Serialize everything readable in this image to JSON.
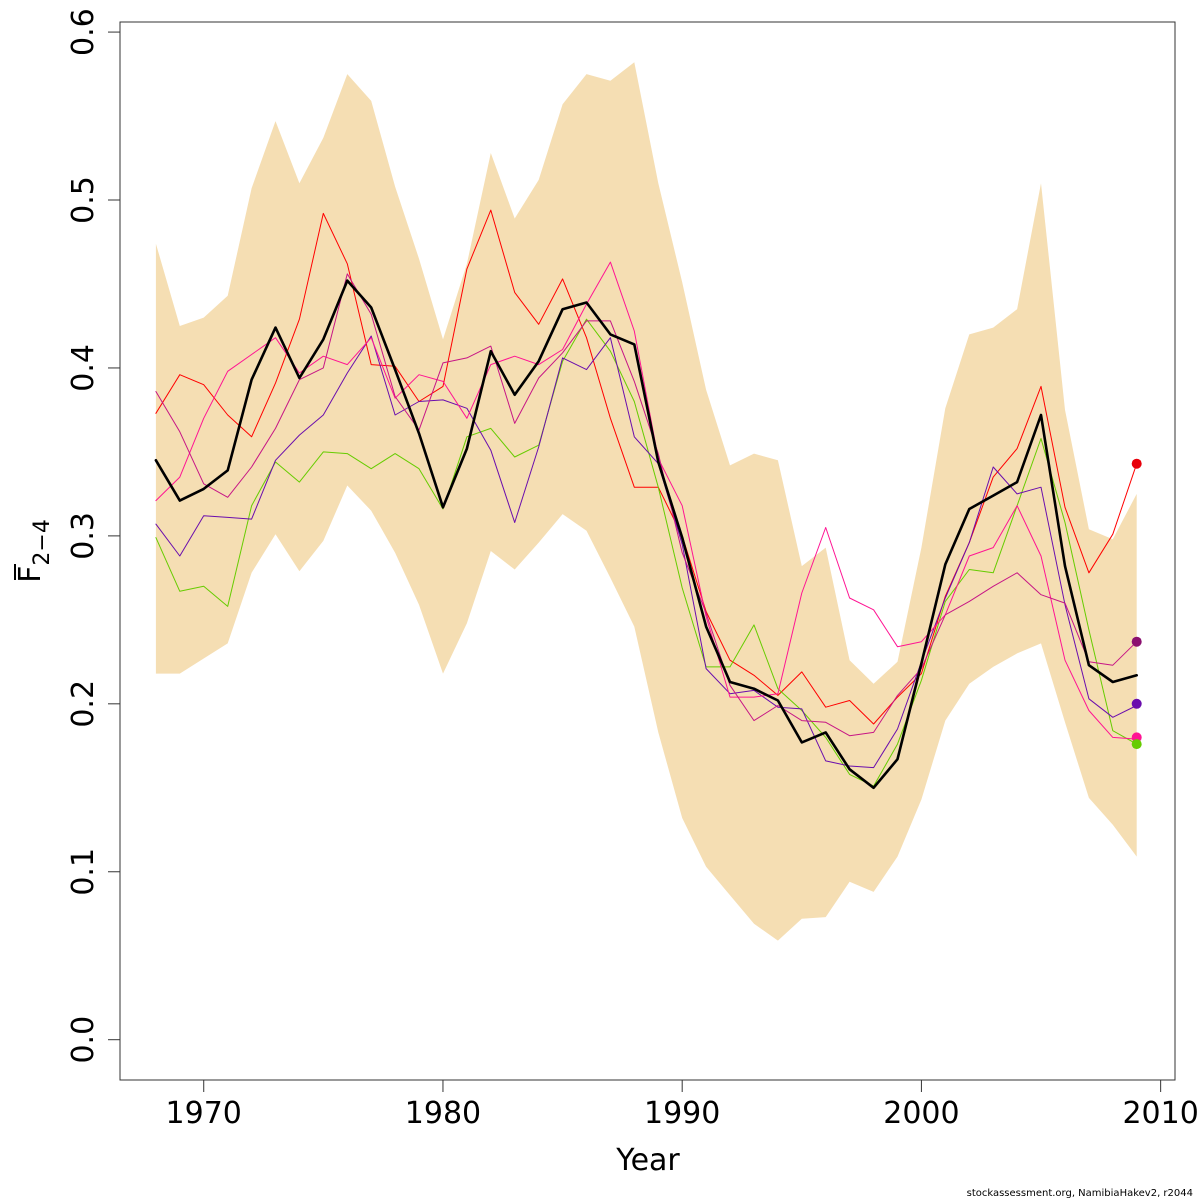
{
  "chart_data": {
    "type": "line",
    "xlabel": "Year",
    "ylabel_main": "F",
    "ylabel_sub": "2−4",
    "xlim": [
      1966.5,
      2010.6
    ],
    "ylim": [
      -0.024,
      0.606
    ],
    "x_ticks": [
      1970,
      1980,
      1990,
      2000,
      2010
    ],
    "y_ticks": [
      0.0,
      0.1,
      0.2,
      0.3,
      0.4,
      0.5,
      0.6
    ],
    "y_tick_labels": [
      "0.0",
      "0.1",
      "0.2",
      "0.3",
      "0.4",
      "0.5",
      "0.6"
    ],
    "credit": "stockassessment.org, NamibiaHakev2, r2044",
    "x": [
      1968,
      1969,
      1970,
      1971,
      1972,
      1973,
      1974,
      1975,
      1976,
      1977,
      1978,
      1979,
      1980,
      1981,
      1982,
      1983,
      1984,
      1985,
      1986,
      1987,
      1988,
      1989,
      1990,
      1991,
      1992,
      1993,
      1994,
      1995,
      1996,
      1997,
      1998,
      1999,
      2000,
      2001,
      2002,
      2003,
      2004,
      2005,
      2006,
      2007,
      2008,
      2009
    ],
    "ci_band": {
      "color": "#F5DEB3",
      "upper": [
        0.474,
        0.425,
        0.43,
        0.443,
        0.507,
        0.547,
        0.51,
        0.537,
        0.575,
        0.559,
        0.508,
        0.465,
        0.417,
        0.462,
        0.528,
        0.489,
        0.512,
        0.557,
        0.575,
        0.571,
        0.582,
        0.51,
        0.451,
        0.387,
        0.342,
        0.349,
        0.345,
        0.282,
        0.293,
        0.226,
        0.212,
        0.225,
        0.293,
        0.376,
        0.42,
        0.424,
        0.435,
        0.51,
        0.375,
        0.304,
        0.298,
        0.325
      ],
      "lower": [
        0.218,
        0.218,
        0.227,
        0.236,
        0.278,
        0.301,
        0.279,
        0.297,
        0.33,
        0.315,
        0.29,
        0.259,
        0.218,
        0.248,
        0.291,
        0.28,
        0.296,
        0.313,
        0.303,
        0.275,
        0.246,
        0.183,
        0.132,
        0.103,
        0.086,
        0.069,
        0.059,
        0.072,
        0.073,
        0.094,
        0.088,
        0.109,
        0.143,
        0.19,
        0.212,
        0.222,
        0.23,
        0.236,
        0.189,
        0.144,
        0.128,
        0.109
      ]
    },
    "series": [
      {
        "color": "#000000",
        "width": 2.6,
        "values": [
          0.345,
          0.321,
          0.328,
          0.339,
          0.393,
          0.424,
          0.394,
          0.417,
          0.452,
          0.436,
          0.399,
          0.361,
          0.317,
          0.352,
          0.41,
          0.384,
          0.404,
          0.435,
          0.439,
          0.42,
          0.414,
          0.344,
          0.299,
          0.246,
          0.213,
          0.209,
          0.202,
          0.177,
          0.183,
          0.161,
          0.15,
          0.167,
          0.224,
          0.283,
          0.316,
          0.324,
          0.332,
          0.372,
          0.282,
          0.223,
          0.213,
          0.217
        ]
      },
      {
        "color": "#FF0000",
        "width": 1,
        "values": [
          0.373,
          0.396,
          0.39,
          0.372,
          0.359,
          0.391,
          0.429,
          0.492,
          0.462,
          0.402,
          0.401,
          0.38,
          0.389,
          0.459,
          0.494,
          0.445,
          0.426,
          0.453,
          0.418,
          0.37,
          0.329,
          0.329,
          0.3,
          0.255,
          0.226,
          0.217,
          0.205,
          0.219,
          0.198,
          0.202,
          0.188,
          0.204,
          0.218,
          0.264,
          0.296,
          0.335,
          0.352,
          0.389,
          0.317,
          0.278,
          0.301,
          0.343
        ]
      },
      {
        "color": "#66CC00",
        "width": 1,
        "values": [
          0.299,
          0.267,
          0.27,
          0.258,
          0.318,
          0.344,
          0.332,
          0.35,
          0.349,
          0.34,
          0.349,
          0.34,
          0.316,
          0.359,
          0.364,
          0.347,
          0.354,
          0.404,
          0.429,
          0.41,
          0.38,
          0.329,
          0.269,
          0.222,
          0.222,
          0.247,
          0.209,
          0.196,
          0.18,
          0.158,
          0.151,
          0.176,
          0.214,
          0.261,
          0.28,
          0.278,
          0.318,
          0.358,
          0.308,
          0.244,
          0.184,
          0.176
        ]
      },
      {
        "color": "#6A0DAD",
        "width": 1,
        "values": [
          0.307,
          0.288,
          0.312,
          0.311,
          0.31,
          0.345,
          0.36,
          0.372,
          0.397,
          0.419,
          0.372,
          0.38,
          0.381,
          0.376,
          0.351,
          0.308,
          0.353,
          0.406,
          0.399,
          0.418,
          0.359,
          0.343,
          0.295,
          0.221,
          0.206,
          0.208,
          0.198,
          0.197,
          0.166,
          0.163,
          0.162,
          0.185,
          0.225,
          0.263,
          0.296,
          0.341,
          0.325,
          0.329,
          0.259,
          0.203,
          0.192,
          0.199
        ]
      },
      {
        "color": "#FF1493",
        "width": 1,
        "values": [
          0.321,
          0.335,
          0.37,
          0.398,
          0.408,
          0.418,
          0.397,
          0.407,
          0.402,
          0.418,
          0.382,
          0.396,
          0.392,
          0.37,
          0.402,
          0.407,
          0.402,
          0.411,
          0.438,
          0.463,
          0.422,
          0.346,
          0.318,
          0.252,
          0.204,
          0.204,
          0.206,
          0.266,
          0.305,
          0.263,
          0.256,
          0.234,
          0.237,
          0.253,
          0.288,
          0.293,
          0.318,
          0.288,
          0.226,
          0.196,
          0.18,
          0.179
        ]
      },
      {
        "color": "#C71585",
        "width": 1,
        "values": [
          0.386,
          0.362,
          0.331,
          0.323,
          0.341,
          0.364,
          0.393,
          0.4,
          0.456,
          0.432,
          0.383,
          0.363,
          0.403,
          0.406,
          0.413,
          0.367,
          0.394,
          0.409,
          0.428,
          0.428,
          0.392,
          0.349,
          0.29,
          0.254,
          0.211,
          0.19,
          0.199,
          0.19,
          0.189,
          0.181,
          0.183,
          0.205,
          0.221,
          0.253,
          0.261,
          0.27,
          0.278,
          0.265,
          0.26,
          0.225,
          0.223,
          0.237
        ]
      }
    ],
    "end_points": [
      {
        "value": 0.343,
        "color": "#E8000B"
      },
      {
        "value": 0.237,
        "color": "#8B1070"
      },
      {
        "value": 0.2,
        "color": "#6A0DAD"
      },
      {
        "value": 0.18,
        "color": "#FF1493"
      },
      {
        "value": 0.176,
        "color": "#66CC00"
      }
    ]
  }
}
